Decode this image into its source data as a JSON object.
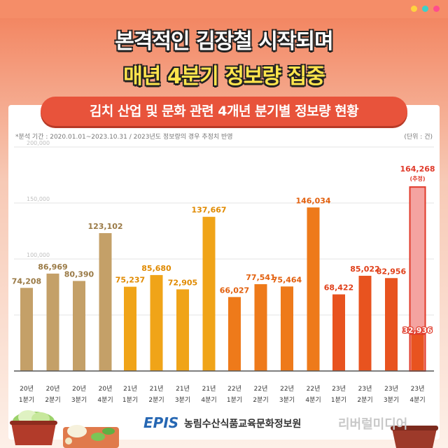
{
  "headline": {
    "line1": "본격적인 김장철 시작되며",
    "line2": "매년 4분기 정보량 집중"
  },
  "banner": {
    "title": "김치 산업 및 문화 관련 4개년 분기별 정보량 현황"
  },
  "note": "*분석 기간 : 2020.01.01~2023.10.31 / 2023년도 정보량의 경우 추정치 반영",
  "unit": "(단위 : 건)",
  "footer": {
    "logo": "EPIS",
    "org": "농림수산식품교육문화정보원",
    "brand": "리버럴미디어"
  },
  "colors": {
    "y2020": "#c4a068",
    "y2021": "#f0a418",
    "y2022": "#ee7a1a",
    "y2023": "#e8531f",
    "estimate_fill": "#f4a3a0",
    "estimate_stroke": "#e03a2a",
    "label_2020": "#9a7a46",
    "label_2021": "#e08a00",
    "label_2022": "#e2600e",
    "label_2023": "#e0401a"
  },
  "icons": [
    "kimchi-bowl-left-icon",
    "cabbage-board-icon",
    "kimchi-bowl-right-icon"
  ],
  "chart_data": {
    "type": "bar",
    "title": "",
    "xlabel": "",
    "ylabel": "",
    "ylim": [
      0,
      200000
    ],
    "yticks": [
      {
        "value": 0,
        "label": ""
      },
      {
        "value": 50000,
        "label": ""
      },
      {
        "value": 100000,
        "label": "100,000"
      },
      {
        "value": 150000,
        "label": "150,000"
      },
      {
        "value": 200000,
        "label": "200,000"
      }
    ],
    "grid": true,
    "groups": [
      {
        "year": "2020",
        "color_key": "y2020",
        "label_color_key": "label_2020",
        "bars": [
          {
            "cat_top": "20년",
            "cat_bottom": "1분기",
            "value": 74208,
            "label": "74,208"
          },
          {
            "cat_top": "20년",
            "cat_bottom": "2분기",
            "value": 86969,
            "label": "86,969"
          },
          {
            "cat_top": "20년",
            "cat_bottom": "3분기",
            "value": 80390,
            "label": "80,390"
          },
          {
            "cat_top": "20년",
            "cat_bottom": "4분기",
            "value": 123102,
            "label": "123,102"
          }
        ]
      },
      {
        "year": "2021",
        "color_key": "y2021",
        "label_color_key": "label_2021",
        "bars": [
          {
            "cat_top": "21년",
            "cat_bottom": "1분기",
            "value": 75237,
            "label": "75,237"
          },
          {
            "cat_top": "21년",
            "cat_bottom": "2분기",
            "value": 85680,
            "label": "85,680"
          },
          {
            "cat_top": "21년",
            "cat_bottom": "3분기",
            "value": 72905,
            "label": "72,905"
          },
          {
            "cat_top": "21년",
            "cat_bottom": "4분기",
            "value": 137667,
            "label": "137,667"
          }
        ]
      },
      {
        "year": "2022",
        "color_key": "y2022",
        "label_color_key": "label_2022",
        "bars": [
          {
            "cat_top": "22년",
            "cat_bottom": "1분기",
            "value": 66027,
            "label": "66,027"
          },
          {
            "cat_top": "22년",
            "cat_bottom": "2분기",
            "value": 77541,
            "label": "77,541"
          },
          {
            "cat_top": "22년",
            "cat_bottom": "3분기",
            "value": 75464,
            "label": "75,464"
          },
          {
            "cat_top": "22년",
            "cat_bottom": "4분기",
            "value": 146034,
            "label": "146,034"
          }
        ]
      },
      {
        "year": "2023",
        "color_key": "y2023",
        "label_color_key": "label_2023",
        "bars": [
          {
            "cat_top": "23년",
            "cat_bottom": "1분기",
            "value": 68422,
            "label": "68,422"
          },
          {
            "cat_top": "23년",
            "cat_bottom": "2분기",
            "value": 85022,
            "label": "85,022"
          },
          {
            "cat_top": "23년",
            "cat_bottom": "3분기",
            "value": 82956,
            "label": "82,956"
          },
          {
            "cat_top": "23년",
            "cat_bottom": "4분기",
            "value": 32936,
            "label": "32,936",
            "estimate": {
              "total": 164268,
              "label": "164,268",
              "note": "(추정)"
            }
          }
        ]
      }
    ]
  }
}
